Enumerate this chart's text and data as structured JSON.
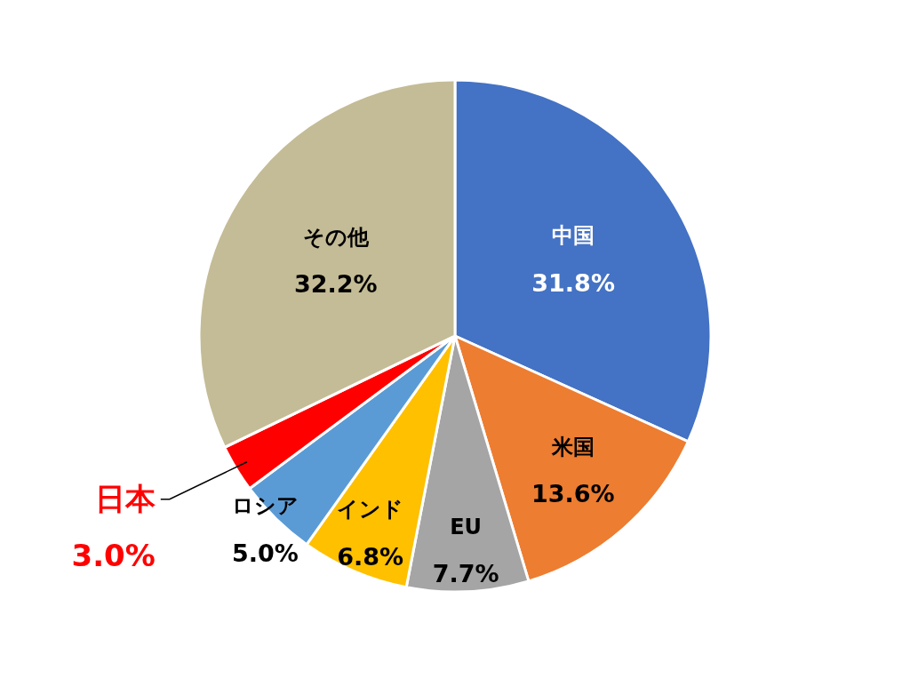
{
  "chart_data": {
    "type": "pie",
    "categories": [
      "中国",
      "米国",
      "EU",
      "インド",
      "ロシア",
      "日本",
      "その他"
    ],
    "values": [
      31.8,
      13.6,
      7.7,
      6.8,
      5.0,
      3.0,
      32.2
    ],
    "colors": [
      "#4472c4",
      "#ed7d31",
      "#a5a5a5",
      "#ffc000",
      "#5b9bd5",
      "#ff0000",
      "#c4bc96"
    ],
    "value_labels": [
      "31.8%",
      "13.6%",
      "7.7%",
      "6.8%",
      "5.0%",
      "3.0%",
      "32.2%"
    ]
  }
}
